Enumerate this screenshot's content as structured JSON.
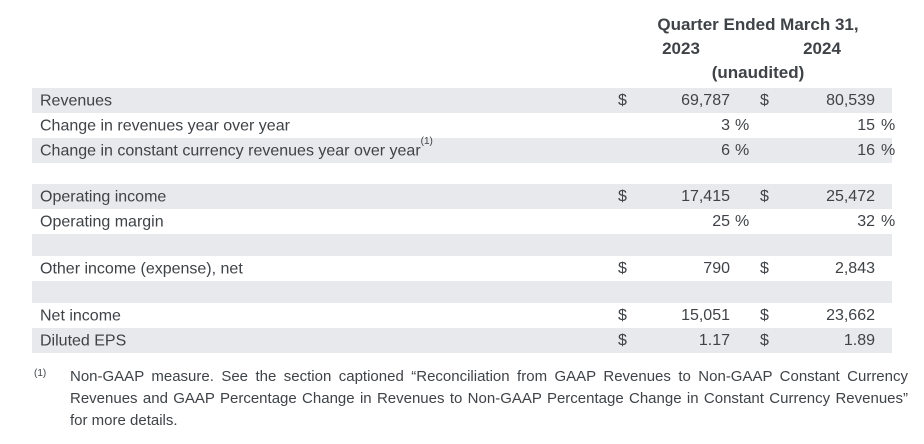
{
  "header": {
    "title": "Quarter Ended March 31,",
    "year_left": "2023",
    "year_right": "2024",
    "subtitle": "(unaudited)"
  },
  "table": {
    "rows": [
      {
        "type": "data",
        "label": "Revenues",
        "sup": "",
        "d1": "$",
        "v1": "69,787",
        "s1": "",
        "d2": "$",
        "v2": "80,539",
        "s2": ""
      },
      {
        "type": "data",
        "label": "Change in revenues year over year",
        "sup": "",
        "d1": "",
        "v1": "3",
        "s1": "%",
        "d2": "",
        "v2": "15",
        "s2": "%"
      },
      {
        "type": "data",
        "label": "Change in constant currency revenues year over year",
        "sup": "(1)",
        "d1": "",
        "v1": "6",
        "s1": "%",
        "d2": "",
        "v2": "16",
        "s2": "%"
      },
      {
        "type": "spacer"
      },
      {
        "type": "data",
        "label": "Operating income",
        "sup": "",
        "d1": "$",
        "v1": "17,415",
        "s1": "",
        "d2": "$",
        "v2": "25,472",
        "s2": ""
      },
      {
        "type": "data",
        "label": "Operating margin",
        "sup": "",
        "d1": "",
        "v1": "25",
        "s1": "%",
        "d2": "",
        "v2": "32",
        "s2": "%"
      },
      {
        "type": "spacer-shaded"
      },
      {
        "type": "data",
        "label": "Other income (expense), net",
        "sup": "",
        "d1": "$",
        "v1": "790",
        "s1": "",
        "d2": "$",
        "v2": "2,843",
        "s2": ""
      },
      {
        "type": "spacer-shaded"
      },
      {
        "type": "data",
        "label": "Net income",
        "sup": "",
        "d1": "$",
        "v1": "15,051",
        "s1": "",
        "d2": "$",
        "v2": "23,662",
        "s2": ""
      },
      {
        "type": "data",
        "label": "Diluted EPS",
        "sup": "",
        "d1": "$",
        "v1": "1.17",
        "s1": "",
        "d2": "$",
        "v2": "1.89",
        "s2": ""
      }
    ]
  },
  "footnote": {
    "marker": "(1)",
    "text": "Non-GAAP measure. See the section captioned “Reconciliation from GAAP Revenues to Non-GAAP Constant Currency Revenues and GAAP Percentage Change in Revenues to Non-GAAP Percentage Change in Constant Currency Revenues” for more details."
  },
  "colors": {
    "row_shade": "#e7e9ec",
    "text": "#3f4347",
    "background": "#ffffff"
  }
}
